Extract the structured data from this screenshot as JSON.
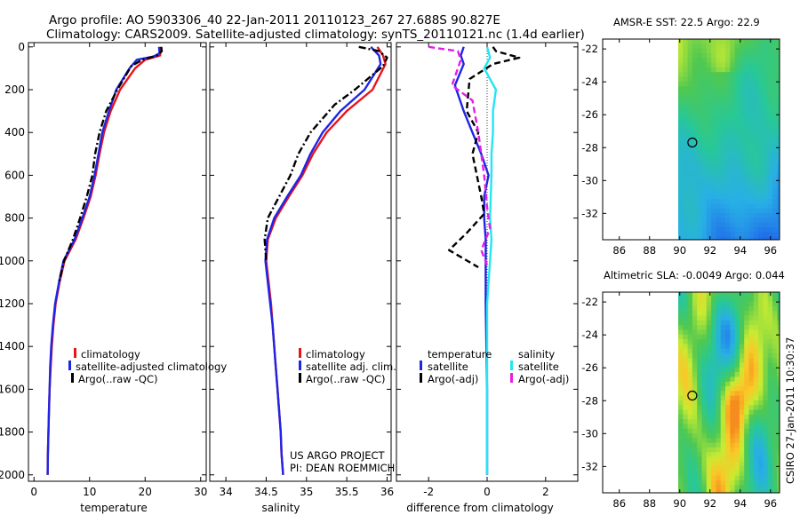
{
  "title": {
    "line1": "Argo profile: AO 5903306_40 22-Jan-2011 20110123_267 27.688S 90.827E",
    "line2": "Climatology: CARS2009. Satellite-adjusted climatology: synTS_20110121.nc (1.4d earlier)"
  },
  "credit": "CSIRO 27-Jan-2011 10:30:37",
  "project": {
    "line1": "US ARGO PROJECT",
    "line2": "PI: DEAN ROEMMICH"
  },
  "colors": {
    "climatology": "#e8141c",
    "satellite": "#1f24e6",
    "argo": "#000000",
    "salinity_satellite": "#22e6f2",
    "salinity_argo": "#e61ce8"
  },
  "chart_data": [
    {
      "type": "line",
      "panel": "temperature",
      "xlabel": "temperature",
      "xlim": [
        -1,
        31
      ],
      "ylim": [
        2030,
        -20
      ],
      "xticks": [
        "0",
        "10",
        "20",
        "30"
      ],
      "yticks": [
        "0",
        "200",
        "400",
        "600",
        "800",
        "1000",
        "1200",
        "1400",
        "1600",
        "1800",
        "2000"
      ],
      "legend": [
        "climatology",
        "satellite-adjusted climatology",
        "Argo(..raw -QC)"
      ],
      "series": [
        {
          "name": "climatology",
          "style": "solid",
          "color": "#e8141c",
          "points": [
            [
              22.8,
              0
            ],
            [
              22.7,
              40
            ],
            [
              20,
              60
            ],
            [
              18.2,
              100
            ],
            [
              15.5,
              200
            ],
            [
              13.8,
              300
            ],
            [
              12.6,
              400
            ],
            [
              11.8,
              500
            ],
            [
              11.1,
              600
            ],
            [
              10.2,
              700
            ],
            [
              8.9,
              800
            ],
            [
              7.5,
              900
            ],
            [
              5.5,
              1000
            ],
            [
              4.6,
              1100
            ],
            [
              3.9,
              1200
            ],
            [
              3.5,
              1300
            ],
            [
              3.2,
              1400
            ],
            [
              3,
              1500
            ],
            [
              2.8,
              1600
            ],
            [
              2.7,
              1700
            ],
            [
              2.6,
              1800
            ],
            [
              2.5,
              1900
            ],
            [
              2.45,
              2000
            ]
          ]
        },
        {
          "name": "satellite-adjusted climatology",
          "style": "solid",
          "color": "#1f24e6",
          "points": [
            [
              22.5,
              0
            ],
            [
              22.6,
              30
            ],
            [
              21.5,
              45
            ],
            [
              18.5,
              60
            ],
            [
              17.2,
              100
            ],
            [
              14.8,
              200
            ],
            [
              13.5,
              300
            ],
            [
              12.3,
              400
            ],
            [
              11.6,
              500
            ],
            [
              10.9,
              600
            ],
            [
              10,
              700
            ],
            [
              8.7,
              800
            ],
            [
              7.3,
              900
            ],
            [
              5.3,
              1000
            ],
            [
              4.5,
              1100
            ],
            [
              3.8,
              1200
            ],
            [
              3.4,
              1300
            ],
            [
              3.1,
              1400
            ],
            [
              2.9,
              1500
            ],
            [
              2.8,
              1600
            ],
            [
              2.7,
              1700
            ],
            [
              2.6,
              1800
            ],
            [
              2.5,
              1900
            ],
            [
              2.45,
              2000
            ]
          ]
        },
        {
          "name": "Argo(..raw -QC)",
          "style": "dashdot",
          "color": "#000000",
          "points": [
            [
              22.9,
              0
            ],
            [
              23,
              20
            ],
            [
              22.2,
              40
            ],
            [
              19.5,
              60
            ],
            [
              17.5,
              90
            ],
            [
              15,
              200
            ],
            [
              13,
              300
            ],
            [
              11.8,
              400
            ],
            [
              11,
              500
            ],
            [
              10.5,
              600
            ],
            [
              9.5,
              700
            ],
            [
              8.3,
              800
            ],
            [
              7,
              900
            ],
            [
              5.4,
              1000
            ],
            [
              4.5,
              1100
            ]
          ]
        }
      ]
    },
    {
      "type": "line",
      "panel": "salinity",
      "xlabel": "salinity",
      "xlim": [
        33.8,
        36.05
      ],
      "ylim": [
        2030,
        -20
      ],
      "xticks": [
        "34",
        "34.5",
        "35",
        "35.5",
        "36"
      ],
      "legend": [
        "climatology",
        "satellite adj. clim.",
        "Argo(..raw -QC)"
      ],
      "series": [
        {
          "name": "climatology",
          "style": "solid",
          "color": "#e8141c",
          "points": [
            [
              35.88,
              0
            ],
            [
              35.95,
              40
            ],
            [
              35.98,
              80
            ],
            [
              35.82,
              200
            ],
            [
              35.5,
              300
            ],
            [
              35.25,
              400
            ],
            [
              35.08,
              500
            ],
            [
              34.95,
              600
            ],
            [
              34.78,
              700
            ],
            [
              34.62,
              800
            ],
            [
              34.52,
              900
            ],
            [
              34.5,
              1000
            ],
            [
              34.53,
              1100
            ],
            [
              34.56,
              1200
            ],
            [
              34.58,
              1300
            ],
            [
              34.6,
              1400
            ],
            [
              34.62,
              1500
            ],
            [
              34.64,
              1600
            ],
            [
              34.66,
              1700
            ],
            [
              34.68,
              1800
            ],
            [
              34.69,
              1900
            ],
            [
              34.71,
              2000
            ]
          ]
        },
        {
          "name": "satellite adj. clim.",
          "style": "solid",
          "color": "#1f24e6",
          "points": [
            [
              35.8,
              0
            ],
            [
              35.9,
              40
            ],
            [
              35.92,
              80
            ],
            [
              35.72,
              200
            ],
            [
              35.42,
              300
            ],
            [
              35.2,
              400
            ],
            [
              35.05,
              500
            ],
            [
              34.93,
              600
            ],
            [
              34.76,
              700
            ],
            [
              34.6,
              800
            ],
            [
              34.51,
              900
            ],
            [
              34.49,
              1000
            ],
            [
              34.52,
              1100
            ],
            [
              34.55,
              1200
            ],
            [
              34.58,
              1300
            ],
            [
              34.6,
              1400
            ],
            [
              34.62,
              1500
            ],
            [
              34.64,
              1600
            ],
            [
              34.66,
              1700
            ],
            [
              34.68,
              1800
            ],
            [
              34.69,
              1900
            ],
            [
              34.71,
              2000
            ]
          ]
        },
        {
          "name": "Argo(..raw -QC)",
          "style": "dashdot",
          "color": "#000000",
          "points": [
            [
              35.65,
              0
            ],
            [
              35.9,
              20
            ],
            [
              36,
              50
            ],
            [
              35.95,
              90
            ],
            [
              35.6,
              200
            ],
            [
              35.35,
              270
            ],
            [
              35.05,
              400
            ],
            [
              34.9,
              500
            ],
            [
              34.8,
              600
            ],
            [
              34.66,
              700
            ],
            [
              34.52,
              800
            ],
            [
              34.48,
              900
            ],
            [
              34.5,
              1000
            ]
          ]
        }
      ]
    },
    {
      "type": "line",
      "panel": "difference",
      "xlabel": "difference from climatology",
      "xlim": [
        -3.1,
        3.1
      ],
      "ylim": [
        2030,
        -20
      ],
      "xticks": [
        "-2",
        "0",
        "2"
      ],
      "legend": [
        "temperature",
        "satellite",
        "Argo(-adj)",
        "salinity",
        "satellite",
        "Argo(-adj)"
      ],
      "series": [
        {
          "name": "temperature satellite",
          "style": "solid",
          "color": "#1f24e6",
          "points": [
            [
              -0.8,
              0
            ],
            [
              -0.9,
              40
            ],
            [
              -0.8,
              80
            ],
            [
              -1.1,
              180
            ],
            [
              -0.8,
              300
            ],
            [
              -0.5,
              400
            ],
            [
              -0.2,
              500
            ],
            [
              0.05,
              600
            ],
            [
              -0.1,
              700
            ],
            [
              -0.1,
              800
            ],
            [
              -0.05,
              900
            ],
            [
              -0.05,
              1000
            ],
            [
              -0.05,
              1100
            ],
            [
              -0.05,
              1200
            ],
            [
              0,
              1600
            ],
            [
              0,
              2000
            ]
          ]
        },
        {
          "name": "temperature Argo(-adj)",
          "style": "dashed",
          "color": "#000000",
          "points": [
            [
              0.2,
              0
            ],
            [
              0.3,
              20
            ],
            [
              1.1,
              50
            ],
            [
              0.2,
              80
            ],
            [
              -0.6,
              150
            ],
            [
              -0.7,
              300
            ],
            [
              -0.3,
              400
            ],
            [
              -0.5,
              500
            ],
            [
              -0.2,
              700
            ],
            [
              -0.1,
              780
            ],
            [
              -0.7,
              870
            ],
            [
              -1.3,
              950
            ],
            [
              -0.3,
              1030
            ]
          ]
        },
        {
          "name": "salinity satellite",
          "style": "solid",
          "color": "#22e6f2",
          "points": [
            [
              0,
              0
            ],
            [
              0.1,
              50
            ],
            [
              -0.1,
              100
            ],
            [
              0.3,
              200
            ],
            [
              0.2,
              300
            ],
            [
              0.2,
              400
            ],
            [
              0.15,
              500
            ],
            [
              0.15,
              600
            ],
            [
              0.1,
              800
            ],
            [
              0.15,
              900
            ],
            [
              0.1,
              1000
            ],
            [
              0.05,
              1100
            ],
            [
              0,
              1200
            ],
            [
              0,
              1600
            ],
            [
              0,
              2000
            ]
          ]
        },
        {
          "name": "salinity Argo(-adj)",
          "style": "dashed",
          "color": "#e61ce8",
          "points": [
            [
              -2,
              0
            ],
            [
              -1,
              20
            ],
            [
              -0.9,
              60
            ],
            [
              -1.2,
              180
            ],
            [
              -0.5,
              250
            ],
            [
              -0.3,
              400
            ],
            [
              -0.2,
              500
            ],
            [
              -0.1,
              600
            ],
            [
              0,
              750
            ],
            [
              0.1,
              850
            ],
            [
              -0.2,
              950
            ],
            [
              0,
              1020
            ]
          ]
        }
      ]
    },
    {
      "type": "heatmap",
      "panel": "sst-map",
      "title": "AMSR-E SST: 22.5 Argo: 22.9",
      "xticks": [
        "86",
        "88",
        "90",
        "92",
        "94",
        "96"
      ],
      "yticks": [
        "-22",
        "-24",
        "-26",
        "-28",
        "-30",
        "-32"
      ],
      "xlim": [
        84.9,
        96.6
      ],
      "ylim": [
        -33.6,
        -21.4
      ],
      "marker": {
        "lon": 90.83,
        "lat": -27.69
      }
    },
    {
      "type": "heatmap",
      "panel": "sla-map",
      "title": "Altimetric SLA: -0.0049 Argo: 0.044",
      "xticks": [
        "86",
        "88",
        "90",
        "92",
        "94",
        "96"
      ],
      "yticks": [
        "-22",
        "-24",
        "-26",
        "-28",
        "-30",
        "-32"
      ],
      "xlim": [
        84.9,
        96.6
      ],
      "ylim": [
        -33.6,
        -21.4
      ],
      "marker": {
        "lon": 90.83,
        "lat": -27.69
      }
    }
  ]
}
